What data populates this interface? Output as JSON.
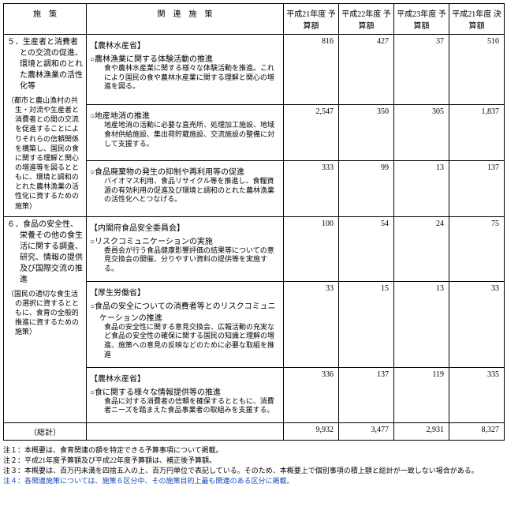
{
  "header": {
    "col_policy": "施　策",
    "col_related": "関　連　施　策",
    "col_y21_budget": "平成21年度\n予算額",
    "col_y22_budget": "平成22年度\n予算額",
    "col_y23_budget": "平成23年度\n予算額",
    "col_y21_settle": "平成21年度\n決算額"
  },
  "rows": [
    {
      "policy_main": "５．生産者と消費者との交流の促進、環境と調和のとれた農林漁業の活性化等",
      "policy_sub": "（都市と農山漁村の共生・対流や生産者と消費者との間の交流を促進することによりそれらの信頼関係を構築し、国民の食に関する理解と関心の増進等を図るとともに、環境と調和のとれた農林漁業の活性化に資するための施策）",
      "agency": "【農林水産省】",
      "items": [
        {
          "title": "○農林漁業に関する体験活動の推進",
          "desc": "食や農林水産業に関する様々な体験活動を推進。これにより国民の食や農林水産業に関する理解と関心の増進を図る。",
          "values": [
            "816",
            "427",
            "37",
            "510"
          ]
        },
        {
          "title": "○地産地消の推進",
          "desc": "地産地消の活動に必要な直売所、処理加工施設、地域食材供給施設、集出荷貯蔵施設、交流施設の整備に対して支援する。",
          "values": [
            "2,547",
            "350",
            "305",
            "1,837"
          ]
        },
        {
          "title": "○食品廃棄物の発生の抑制や再利用等の促進",
          "desc": "バイオマス利用、食品リサイクル等を推進し、食糧資源の有効利用の促進及び環境と調和のとれた農林漁業の活性化へとつなげる。",
          "values": [
            "333",
            "99",
            "13",
            "137"
          ]
        }
      ]
    },
    {
      "policy_main": "６．食品の安全性、栄養その他の食生活に関する調査、研究、情報の提供及び国際交流の推進",
      "policy_sub": "（国民の適切な食生活の選択に資するとともに、食育の全般的推進に資するための施策）",
      "sections": [
        {
          "agency": "【内閣府食品安全委員会】",
          "items": [
            {
              "title": "○リスクコミュニケーションの実施",
              "desc": "委員会が行う食品健康影響評価の結果等についての意見交換会の開催、分りやすい資料の提供等を実施する。",
              "values": [
                "100",
                "54",
                "24",
                "75"
              ]
            }
          ]
        },
        {
          "agency": "【厚生労働省】",
          "items": [
            {
              "title": "○食品の安全についての消費者等とのリスクコミュニケーションの推進",
              "desc": "食品の安全性に関する意見交換会、広報活動の充実など食品の安全性の確保に関する国民の知識と理解の増進、施策への意見の反映などのために必要な取組を推進",
              "values": [
                "33",
                "15",
                "13",
                "33"
              ]
            }
          ]
        },
        {
          "agency": "【農林水産省】",
          "items": [
            {
              "title": "○食に関する様々な情報提供等の推進",
              "desc": "食品に対する消費者の信頼を確保するとともに、消費者ニーズを踏まえた食品事業者の取組みを支援する。",
              "values": [
                "336",
                "137",
                "119",
                "335"
              ]
            }
          ]
        }
      ]
    }
  ],
  "total": {
    "label": "（総計）",
    "values": [
      "9,932",
      "3,477",
      "2,931",
      "8,327"
    ]
  },
  "notes": [
    "注１：本概要は、食育関連の額を特定できる予算事項について掲載。",
    "注２：平成21年度予算額及び平成22年度予算額は、補正後予算額。",
    "注３：本概要は、百万円未満を四捨五入の上、百万円単位で表記している。そのため、本概要上で個別事項の積上額と総計が一致しない場合がある。",
    "注４：各関連施策については、施策６区分中、その施策目的上最も関連のある区分に掲載。"
  ]
}
